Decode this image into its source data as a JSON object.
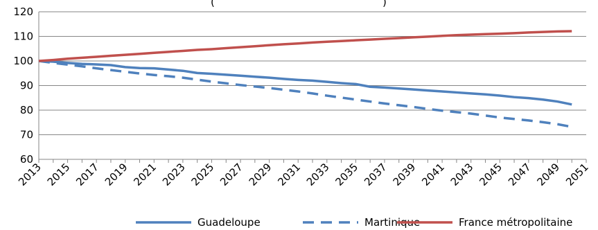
{
  "chart_data": {
    "type": "line",
    "title_fragment_left": "(",
    "title_fragment_right": ")",
    "xlabel": "",
    "ylabel": "",
    "ylim": [
      60,
      120
    ],
    "yticks": [
      60,
      70,
      80,
      90,
      100,
      110,
      120
    ],
    "x_tick_labels": [
      "2013",
      "2015",
      "2017",
      "2019",
      "2021",
      "2023",
      "2025",
      "2027",
      "2029",
      "2031",
      "2033",
      "2035",
      "2037",
      "2039",
      "2041",
      "2043",
      "2045",
      "2047",
      "2049",
      "2051"
    ],
    "grid": "horizontal",
    "legend_position": "bottom",
    "x": [
      2013,
      2014,
      2015,
      2016,
      2017,
      2018,
      2019,
      2020,
      2021,
      2022,
      2023,
      2024,
      2025,
      2026,
      2027,
      2028,
      2029,
      2030,
      2031,
      2032,
      2033,
      2034,
      2035,
      2036,
      2037,
      2038,
      2039,
      2040,
      2041,
      2042,
      2043,
      2044,
      2045,
      2046,
      2047,
      2048,
      2049,
      2050
    ],
    "series": [
      {
        "name": "Guadeloupe",
        "color": "#4F81BD",
        "dash": "solid",
        "values": [
          100.0,
          99.7,
          99.2,
          98.8,
          98.6,
          98.3,
          97.5,
          97.1,
          97.0,
          96.5,
          96.0,
          95.1,
          94.8,
          94.4,
          94.0,
          93.6,
          93.2,
          92.7,
          92.3,
          92.0,
          91.5,
          91.0,
          90.6,
          89.5,
          89.2,
          88.8,
          88.4,
          88.0,
          87.6,
          87.2,
          86.8,
          86.4,
          85.9,
          85.3,
          84.9,
          84.3,
          83.5,
          82.3
        ]
      },
      {
        "name": "Martinique",
        "color": "#4F81BD",
        "dash": "dashed",
        "values": [
          100.0,
          99.2,
          98.5,
          97.8,
          97.0,
          96.3,
          95.6,
          94.9,
          94.3,
          93.8,
          93.2,
          92.4,
          91.6,
          90.9,
          90.2,
          89.6,
          89.0,
          88.3,
          87.6,
          86.8,
          85.9,
          85.1,
          84.3,
          83.5,
          82.7,
          82.0,
          81.3,
          80.5,
          79.8,
          79.2,
          78.6,
          77.8,
          77.0,
          76.4,
          75.8,
          75.1,
          74.3,
          73.2
        ]
      },
      {
        "name": "France métropolitaine",
        "color": "#C0504D",
        "dash": "solid",
        "values": [
          100.0,
          100.4,
          100.9,
          101.3,
          101.7,
          102.1,
          102.5,
          102.9,
          103.3,
          103.7,
          104.1,
          104.5,
          104.8,
          105.2,
          105.6,
          106.0,
          106.4,
          106.8,
          107.1,
          107.5,
          107.8,
          108.1,
          108.4,
          108.7,
          109.0,
          109.3,
          109.6,
          109.9,
          110.2,
          110.5,
          110.7,
          110.9,
          111.1,
          111.3,
          111.6,
          111.8,
          112.0,
          112.1
        ]
      }
    ]
  }
}
